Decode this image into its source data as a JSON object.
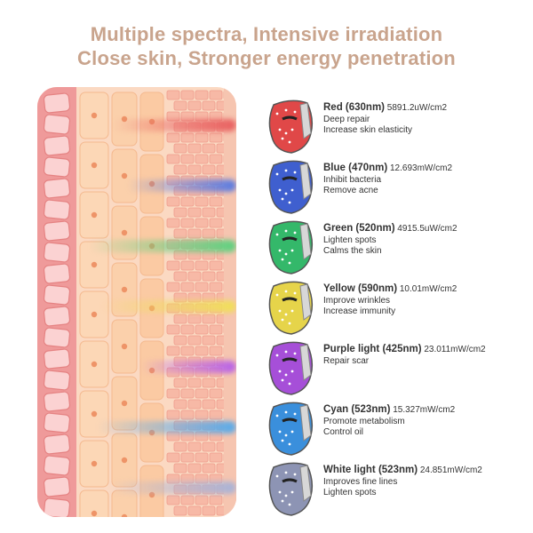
{
  "headline": {
    "line1": "Multiple spectra, Intensive irradiation",
    "line2": "Close skin, Stronger energy penetration"
  },
  "spectra": [
    {
      "name": "Red (630nm)",
      "power": "5891.2uW/cm2",
      "benefits": [
        "Deep repair",
        "Increase skin elasticity"
      ],
      "color": "#e04848",
      "beam": "#e86060",
      "depth": 0.62
    },
    {
      "name": "Blue (470nm)",
      "power": "12.693mW/cm2",
      "benefits": [
        "Inhibit bacteria",
        "Remove acne"
      ],
      "color": "#3f5fcf",
      "beam": "#5b7be0",
      "depth": 0.55
    },
    {
      "name": "Green (520nm)",
      "power": "4915.5uW/cm2",
      "benefits": [
        "Lighten spots",
        "Calms the skin"
      ],
      "color": "#34b86a",
      "beam": "#5fd07f",
      "depth": 0.74
    },
    {
      "name": "Yellow (590nm)",
      "power": "10.01mW/cm2",
      "benefits": [
        "Improve wrinkles",
        "Increase immunity"
      ],
      "color": "#e6d44a",
      "beam": "#f0de5a",
      "depth": 0.68
    },
    {
      "name": "Purple light (425nm)",
      "power": "23.011mW/cm2",
      "benefits": [
        "Repair scar"
      ],
      "color": "#a64fd8",
      "beam": "#b862e6",
      "depth": 0.48
    },
    {
      "name": "Cyan (523nm)",
      "power": "15.327mW/cm2",
      "benefits": [
        "Promote metabolism",
        "Control oil"
      ],
      "color": "#3a8fdc",
      "beam": "#5aaae8",
      "depth": 0.7
    },
    {
      "name": "White light (523nm)",
      "power": "24.851mW/cm2",
      "benefits": [
        "Improves fine lines",
        "Lighten spots"
      ],
      "color": "#8d94b4",
      "beam": "#a9b3d6",
      "depth": 0.64
    }
  ]
}
